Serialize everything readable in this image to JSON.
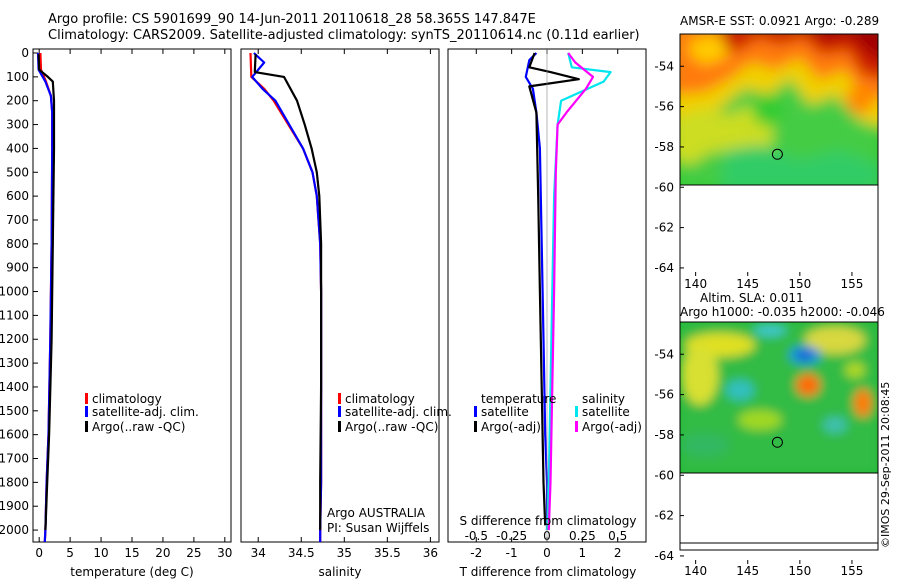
{
  "figure": {
    "title_line1": "Argo profile: CS 5901699_90 14-Jun-2011 20110618_28 58.365S 147.847E",
    "title_line2": "Climatology: CARS2009. Satellite-adjusted climatology: synTS_20110614.nc (0.11d earlier)",
    "watermark": "©IMOS 29-Sep-2011 20:08:45",
    "float_label_1": "Argo AUSTRALIA",
    "float_label_2": "PI: Susan Wijffels"
  },
  "colors": {
    "climatology": "#ff0000",
    "satellite": "#0000ff",
    "argo": "#000000",
    "sal_satellite": "#00e5ee",
    "sal_argo": "#ff00ff"
  },
  "chart_data": [
    {
      "id": "temperature",
      "type": "line",
      "xlabel": "temperature (deg C)",
      "ylabel": "",
      "xlim": [
        -1,
        31
      ],
      "ylim": [
        2050,
        0
      ],
      "xticks": [
        0,
        5,
        10,
        15,
        20,
        25,
        30
      ],
      "yticks": [
        0,
        100,
        200,
        300,
        400,
        500,
        600,
        700,
        800,
        900,
        1000,
        1100,
        1200,
        1300,
        1400,
        1500,
        1600,
        1700,
        1800,
        1900,
        2000
      ],
      "legend": [
        "climatology",
        "satellite-adj. clim.",
        "Argo(..raw -QC)"
      ],
      "series": [
        {
          "name": "climatology",
          "color": "#ff0000",
          "x": [
            0.2,
            0.3,
            1.1,
            1.9,
            2.1,
            2.1,
            2.0,
            1.8,
            1.5,
            1.2,
            1.0,
            0.9
          ],
          "y": [
            0,
            70,
            120,
            180,
            250,
            400,
            800,
            1200,
            1600,
            1800,
            2000,
            2050
          ]
        },
        {
          "name": "satellite-adj. clim.",
          "color": "#0000ff",
          "x": [
            -0.2,
            -0.1,
            1.0,
            1.9,
            2.1,
            2.1,
            2.0,
            1.8,
            1.5,
            1.2,
            1.0,
            0.9
          ],
          "y": [
            0,
            70,
            120,
            180,
            250,
            400,
            800,
            1200,
            1600,
            1800,
            2000,
            2050
          ]
        },
        {
          "name": "Argo(..raw -QC)",
          "color": "#000000",
          "x": [
            -0.1,
            0.0,
            1.4,
            2.2,
            2.4,
            2.4,
            2.2,
            2.0,
            1.6,
            1.3,
            1.0
          ],
          "y": [
            5,
            70,
            100,
            120,
            200,
            400,
            800,
            1200,
            1600,
            1800,
            2000
          ]
        }
      ]
    },
    {
      "id": "salinity",
      "type": "line",
      "xlabel": "salinity",
      "ylabel": "",
      "xlim": [
        33.8,
        36.1
      ],
      "ylim": [
        2050,
        0
      ],
      "xticks": [
        34,
        34.5,
        35,
        35.5,
        36
      ],
      "xticklabels": [
        "34",
        "34.5",
        "35",
        "35.5",
        "36"
      ],
      "legend": [
        "climatology",
        "satellite-adj. clim.",
        "Argo(..raw -QC)"
      ],
      "series": [
        {
          "name": "climatology",
          "color": "#ff0000",
          "x": [
            33.91,
            33.92,
            34.07,
            34.18,
            34.35,
            34.52,
            34.63,
            34.68,
            34.72,
            34.73,
            34.73,
            34.73,
            34.72,
            34.72
          ],
          "y": [
            0,
            100,
            150,
            200,
            300,
            400,
            500,
            600,
            800,
            1000,
            1400,
            1800,
            2000,
            2050
          ]
        },
        {
          "name": "satellite-adj. clim.",
          "color": "#0000ff",
          "x": [
            33.95,
            34.07,
            34.0,
            33.93,
            34.05,
            34.2,
            34.36,
            34.52,
            34.63,
            34.68,
            34.72,
            34.73,
            34.73,
            34.73,
            34.72,
            34.72
          ],
          "y": [
            0,
            40,
            70,
            100,
            150,
            200,
            300,
            400,
            500,
            600,
            800,
            1000,
            1400,
            1800,
            2000,
            2050
          ]
        },
        {
          "name": "Argo(..raw -QC)",
          "color": "#000000",
          "x": [
            33.97,
            33.96,
            34.3,
            34.45,
            34.54,
            34.62,
            34.68,
            34.71,
            34.73,
            34.73,
            34.73,
            34.72,
            34.72
          ],
          "y": [
            5,
            80,
            100,
            200,
            300,
            400,
            500,
            600,
            800,
            1000,
            1400,
            1800,
            2000
          ]
        }
      ]
    },
    {
      "id": "difference",
      "type": "line",
      "xlabel": "T difference from climatology",
      "xlabel_top": "S difference from climatology",
      "ylabel": "",
      "xlim": [
        -2.8,
        2.8
      ],
      "ylim": [
        2050,
        0
      ],
      "xticks": [
        -2,
        -1,
        0,
        1,
        2
      ],
      "sticks_positions": [
        -2,
        -1,
        0,
        1,
        2
      ],
      "sticklabels": [
        "-0.5",
        "-0.25",
        "0",
        "0.25",
        "0.5"
      ],
      "legend_titles": [
        "temperature",
        "salinity"
      ],
      "legend": [
        "satellite",
        "Argo(-adj)",
        "satellite",
        "Argo(-adj)"
      ],
      "series": [
        {
          "name": "satellite",
          "group": "temperature",
          "color": "#0000ff",
          "x": [
            -0.3,
            -0.5,
            -0.6,
            -0.4,
            -0.3,
            -0.2,
            -0.15,
            -0.1,
            -0.05,
            0.0,
            0.0
          ],
          "y": [
            0,
            30,
            100,
            150,
            250,
            400,
            800,
            1200,
            1600,
            1800,
            2000
          ]
        },
        {
          "name": "Argo(-adj)",
          "group": "temperature",
          "color": "#000000",
          "x": [
            -0.35,
            -0.5,
            0.1,
            0.9,
            -0.5,
            -0.3,
            -0.25,
            -0.2,
            -0.15,
            -0.1,
            -0.05
          ],
          "y": [
            0,
            60,
            80,
            110,
            140,
            250,
            600,
            1000,
            1400,
            1800,
            1980
          ]
        },
        {
          "name": "satellite",
          "group": "salinity",
          "color": "#00e5ee",
          "x": [
            0.6,
            0.7,
            1.8,
            1.6,
            0.4,
            0.3,
            0.2,
            0.15,
            0.1,
            0.05,
            0.0
          ],
          "y": [
            0,
            60,
            80,
            120,
            200,
            300,
            600,
            1000,
            1400,
            1800,
            2000
          ]
        },
        {
          "name": "Argo(-adj)",
          "group": "salinity",
          "color": "#ff00ff",
          "x": [
            0.6,
            0.8,
            1.3,
            1.1,
            0.55,
            0.3,
            0.25,
            0.2,
            0.15,
            0.1,
            0.05
          ],
          "y": [
            0,
            40,
            100,
            150,
            250,
            300,
            500,
            1000,
            1400,
            1800,
            2000
          ]
        }
      ]
    },
    {
      "id": "sst_map",
      "type": "heatmap",
      "title": "AMSR-E SST: 0.0921 Argo: -0.289",
      "xlim": [
        138.5,
        157.5
      ],
      "ylim": [
        -64.4,
        -52.4
      ],
      "xticks": [
        140,
        145,
        150,
        155
      ],
      "yticks": [
        -54,
        -56,
        -58,
        -60,
        -62,
        -64
      ],
      "data_extent_lat": [
        -60,
        -52.4
      ],
      "marker": {
        "lon": 147.847,
        "lat": -58.365
      }
    },
    {
      "id": "sla_map",
      "type": "heatmap",
      "title_line1": "Altim. SLA: 0.011",
      "title_line2": "Argo h1000: -0.035 h2000: -0.046",
      "xlim": [
        138.5,
        157.5
      ],
      "ylim": [
        -64.4,
        -52.4
      ],
      "xticks": [
        140,
        145,
        150,
        155
      ],
      "yticks": [
        -54,
        -56,
        -58,
        -60,
        -62,
        -64
      ],
      "data_extent_lat": [
        -60,
        -52.4
      ],
      "marker": {
        "lon": 147.847,
        "lat": -58.365
      }
    }
  ]
}
